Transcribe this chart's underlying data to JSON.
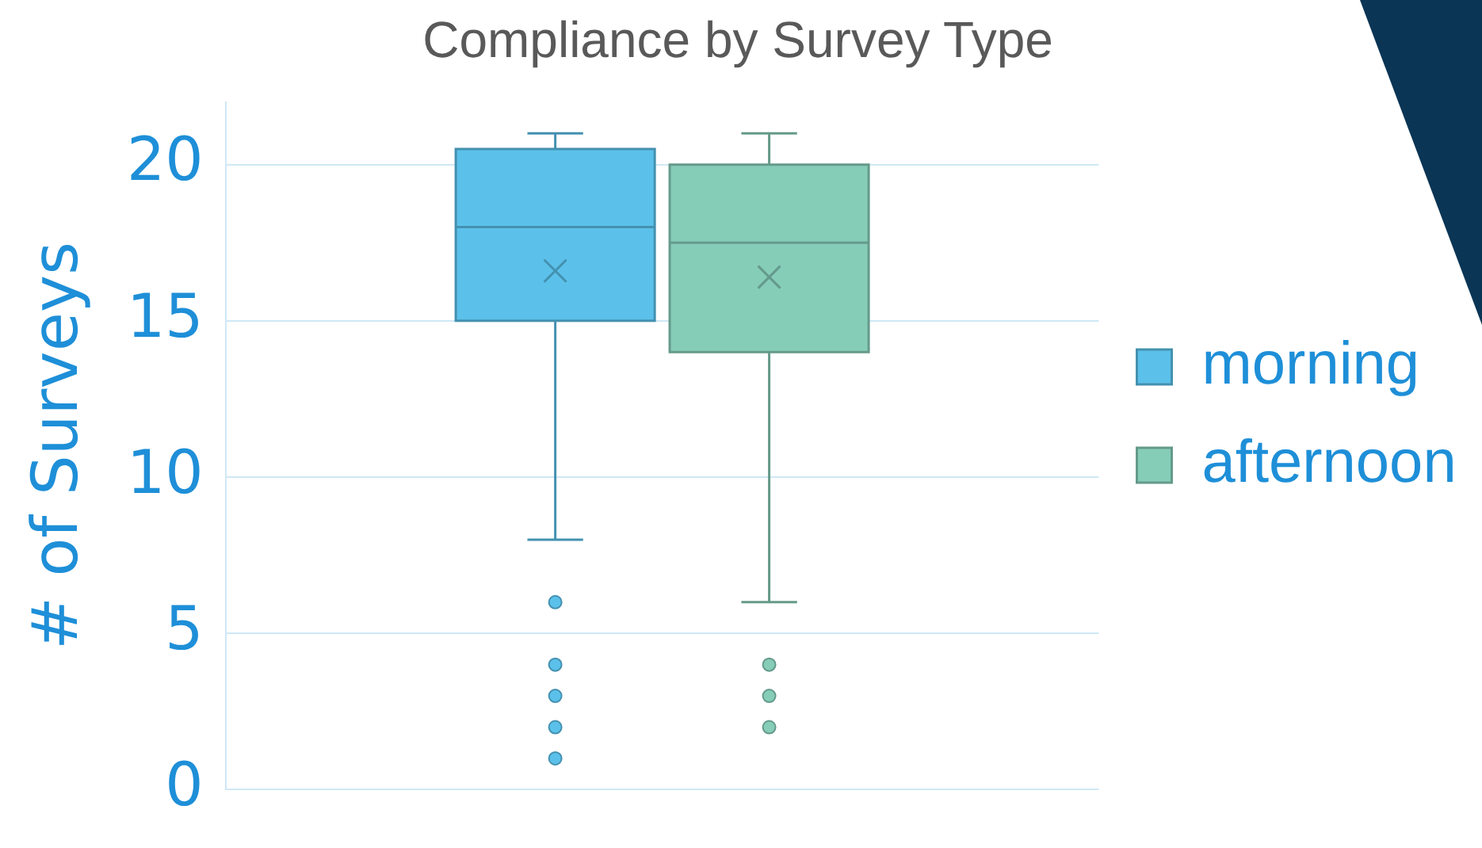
{
  "chart_data": {
    "type": "box",
    "title": "Compliance by Survey Type",
    "ylabel": "# of Surveys",
    "categories": [
      null
    ],
    "series": [
      {
        "name": "morning",
        "color": "#5bc1ea",
        "boxes": [
          {
            "low": 8,
            "q1": 15,
            "median": 18,
            "q3": 20.5,
            "high": 21,
            "mean": 16.6,
            "outliers": [
              6,
              4,
              3,
              2,
              1
            ]
          }
        ]
      },
      {
        "name": "afternoon",
        "color": "#86cdb8",
        "boxes": [
          {
            "low": 6,
            "q1": 14,
            "median": 17.5,
            "q3": 20,
            "high": 21,
            "mean": 16.4,
            "outliers": [
              4,
              3,
              2
            ]
          }
        ]
      }
    ],
    "ylim": [
      0,
      22
    ],
    "yticks": [
      0,
      5,
      10,
      15,
      20
    ],
    "grid": "y",
    "legend": "right",
    "tick_labels": "y"
  }
}
